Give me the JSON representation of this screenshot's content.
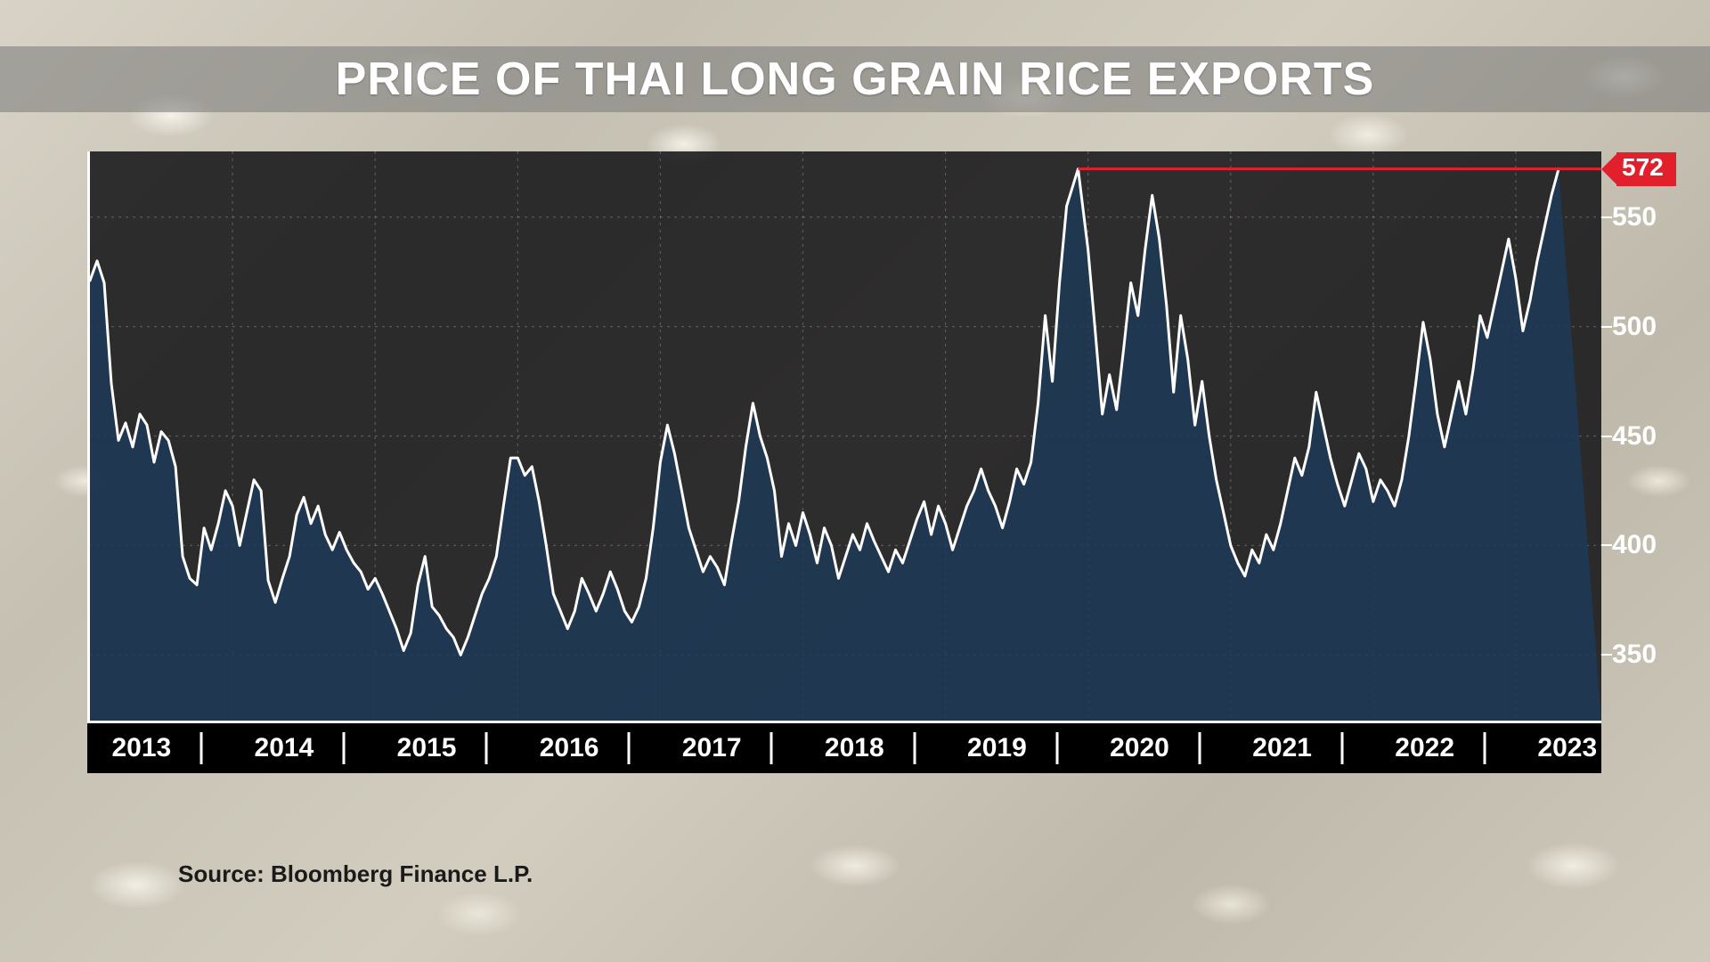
{
  "title": "PRICE OF THAI LONG GRAIN RICE EXPORTS",
  "source": "Source: Bloomberg Finance L.P.",
  "chart": {
    "type": "area",
    "background_overlay": "rgba(10,10,14,0.82)",
    "area_fill": "#1d3a57",
    "area_fill_opacity": 0.85,
    "line_color": "#ffffff",
    "line_width": 3,
    "grid_color": "rgba(255,255,255,0.22)",
    "grid_dash": "3,5",
    "axis_color": "#ffffff",
    "x_axis_bg": "#000000",
    "x_range": [
      2013.0,
      2023.6
    ],
    "y_range": [
      320,
      580
    ],
    "y_ticks": [
      350,
      400,
      450,
      500,
      550
    ],
    "x_vgrid": [
      2014,
      2015,
      2016,
      2017,
      2018,
      2019,
      2020,
      2021,
      2022,
      2023
    ],
    "x_years": [
      2013,
      2014,
      2015,
      2016,
      2017,
      2018,
      2019,
      2020,
      2021,
      2022,
      2023
    ],
    "reference_line": {
      "y": 572,
      "x_start": 2019.93,
      "color": "#e2202c",
      "width": 3
    },
    "callout": {
      "value": "572",
      "y": 572,
      "bg": "#e2202c",
      "text_color": "#ffffff"
    },
    "title_fontsize": 52,
    "tick_fontsize": 30,
    "series": [
      [
        2013.0,
        521
      ],
      [
        2013.05,
        530
      ],
      [
        2013.1,
        520
      ],
      [
        2013.15,
        474
      ],
      [
        2013.2,
        448
      ],
      [
        2013.25,
        456
      ],
      [
        2013.3,
        445
      ],
      [
        2013.35,
        460
      ],
      [
        2013.4,
        455
      ],
      [
        2013.45,
        438
      ],
      [
        2013.5,
        452
      ],
      [
        2013.55,
        448
      ],
      [
        2013.6,
        436
      ],
      [
        2013.65,
        395
      ],
      [
        2013.7,
        385
      ],
      [
        2013.75,
        382
      ],
      [
        2013.8,
        408
      ],
      [
        2013.85,
        398
      ],
      [
        2013.9,
        410
      ],
      [
        2013.95,
        425
      ],
      [
        2014.0,
        418
      ],
      [
        2014.05,
        400
      ],
      [
        2014.1,
        415
      ],
      [
        2014.15,
        430
      ],
      [
        2014.2,
        425
      ],
      [
        2014.25,
        384
      ],
      [
        2014.3,
        374
      ],
      [
        2014.35,
        385
      ],
      [
        2014.4,
        395
      ],
      [
        2014.45,
        414
      ],
      [
        2014.5,
        422
      ],
      [
        2014.55,
        410
      ],
      [
        2014.6,
        418
      ],
      [
        2014.65,
        405
      ],
      [
        2014.7,
        398
      ],
      [
        2014.75,
        406
      ],
      [
        2014.8,
        398
      ],
      [
        2014.85,
        392
      ],
      [
        2014.9,
        388
      ],
      [
        2014.95,
        380
      ],
      [
        2015.0,
        385
      ],
      [
        2015.05,
        378
      ],
      [
        2015.1,
        370
      ],
      [
        2015.15,
        362
      ],
      [
        2015.2,
        352
      ],
      [
        2015.25,
        360
      ],
      [
        2015.3,
        382
      ],
      [
        2015.35,
        395
      ],
      [
        2015.4,
        372
      ],
      [
        2015.45,
        368
      ],
      [
        2015.5,
        362
      ],
      [
        2015.55,
        358
      ],
      [
        2015.6,
        350
      ],
      [
        2015.65,
        358
      ],
      [
        2015.7,
        368
      ],
      [
        2015.75,
        378
      ],
      [
        2015.8,
        385
      ],
      [
        2015.85,
        395
      ],
      [
        2015.9,
        418
      ],
      [
        2015.95,
        440
      ],
      [
        2016.0,
        440
      ],
      [
        2016.05,
        432
      ],
      [
        2016.1,
        436
      ],
      [
        2016.15,
        420
      ],
      [
        2016.2,
        400
      ],
      [
        2016.25,
        378
      ],
      [
        2016.3,
        370
      ],
      [
        2016.35,
        362
      ],
      [
        2016.4,
        370
      ],
      [
        2016.45,
        385
      ],
      [
        2016.5,
        378
      ],
      [
        2016.55,
        370
      ],
      [
        2016.6,
        378
      ],
      [
        2016.65,
        388
      ],
      [
        2016.7,
        380
      ],
      [
        2016.75,
        370
      ],
      [
        2016.8,
        365
      ],
      [
        2016.85,
        372
      ],
      [
        2016.9,
        385
      ],
      [
        2016.95,
        408
      ],
      [
        2017.0,
        438
      ],
      [
        2017.05,
        455
      ],
      [
        2017.1,
        442
      ],
      [
        2017.15,
        425
      ],
      [
        2017.2,
        408
      ],
      [
        2017.25,
        398
      ],
      [
        2017.3,
        388
      ],
      [
        2017.35,
        395
      ],
      [
        2017.4,
        390
      ],
      [
        2017.45,
        382
      ],
      [
        2017.5,
        402
      ],
      [
        2017.55,
        420
      ],
      [
        2017.6,
        445
      ],
      [
        2017.65,
        465
      ],
      [
        2017.7,
        450
      ],
      [
        2017.75,
        440
      ],
      [
        2017.8,
        425
      ],
      [
        2017.85,
        395
      ],
      [
        2017.9,
        410
      ],
      [
        2017.95,
        400
      ],
      [
        2018.0,
        415
      ],
      [
        2018.05,
        405
      ],
      [
        2018.1,
        392
      ],
      [
        2018.15,
        408
      ],
      [
        2018.2,
        400
      ],
      [
        2018.25,
        385
      ],
      [
        2018.3,
        395
      ],
      [
        2018.35,
        405
      ],
      [
        2018.4,
        398
      ],
      [
        2018.45,
        410
      ],
      [
        2018.5,
        402
      ],
      [
        2018.55,
        395
      ],
      [
        2018.6,
        388
      ],
      [
        2018.65,
        398
      ],
      [
        2018.7,
        392
      ],
      [
        2018.75,
        402
      ],
      [
        2018.8,
        412
      ],
      [
        2018.85,
        420
      ],
      [
        2018.9,
        405
      ],
      [
        2018.95,
        418
      ],
      [
        2019.0,
        410
      ],
      [
        2019.05,
        398
      ],
      [
        2019.1,
        408
      ],
      [
        2019.15,
        418
      ],
      [
        2019.2,
        425
      ],
      [
        2019.25,
        435
      ],
      [
        2019.3,
        425
      ],
      [
        2019.35,
        418
      ],
      [
        2019.4,
        408
      ],
      [
        2019.45,
        420
      ],
      [
        2019.5,
        435
      ],
      [
        2019.55,
        428
      ],
      [
        2019.6,
        438
      ],
      [
        2019.65,
        465
      ],
      [
        2019.7,
        505
      ],
      [
        2019.75,
        475
      ],
      [
        2019.8,
        520
      ],
      [
        2019.85,
        555
      ],
      [
        2019.93,
        572
      ],
      [
        2020.0,
        535
      ],
      [
        2020.05,
        498
      ],
      [
        2020.1,
        460
      ],
      [
        2020.15,
        478
      ],
      [
        2020.2,
        462
      ],
      [
        2020.25,
        490
      ],
      [
        2020.3,
        520
      ],
      [
        2020.35,
        505
      ],
      [
        2020.4,
        535
      ],
      [
        2020.45,
        560
      ],
      [
        2020.5,
        540
      ],
      [
        2020.55,
        510
      ],
      [
        2020.6,
        470
      ],
      [
        2020.65,
        505
      ],
      [
        2020.7,
        485
      ],
      [
        2020.75,
        455
      ],
      [
        2020.8,
        475
      ],
      [
        2020.85,
        450
      ],
      [
        2020.9,
        430
      ],
      [
        2020.95,
        415
      ],
      [
        2021.0,
        400
      ],
      [
        2021.05,
        392
      ],
      [
        2021.1,
        386
      ],
      [
        2021.15,
        398
      ],
      [
        2021.2,
        392
      ],
      [
        2021.25,
        405
      ],
      [
        2021.3,
        398
      ],
      [
        2021.35,
        410
      ],
      [
        2021.4,
        425
      ],
      [
        2021.45,
        440
      ],
      [
        2021.5,
        432
      ],
      [
        2021.55,
        445
      ],
      [
        2021.6,
        470
      ],
      [
        2021.65,
        455
      ],
      [
        2021.7,
        440
      ],
      [
        2021.75,
        428
      ],
      [
        2021.8,
        418
      ],
      [
        2021.85,
        430
      ],
      [
        2021.9,
        442
      ],
      [
        2021.95,
        435
      ],
      [
        2022.0,
        420
      ],
      [
        2022.05,
        430
      ],
      [
        2022.1,
        425
      ],
      [
        2022.15,
        418
      ],
      [
        2022.2,
        430
      ],
      [
        2022.25,
        450
      ],
      [
        2022.3,
        475
      ],
      [
        2022.35,
        502
      ],
      [
        2022.4,
        485
      ],
      [
        2022.45,
        460
      ],
      [
        2022.5,
        445
      ],
      [
        2022.55,
        460
      ],
      [
        2022.6,
        475
      ],
      [
        2022.65,
        460
      ],
      [
        2022.7,
        480
      ],
      [
        2022.75,
        505
      ],
      [
        2022.8,
        495
      ],
      [
        2022.85,
        510
      ],
      [
        2022.9,
        525
      ],
      [
        2022.95,
        540
      ],
      [
        2023.0,
        522
      ],
      [
        2023.05,
        498
      ],
      [
        2023.1,
        512
      ],
      [
        2023.15,
        530
      ],
      [
        2023.2,
        545
      ],
      [
        2023.25,
        560
      ],
      [
        2023.3,
        572
      ]
    ]
  }
}
